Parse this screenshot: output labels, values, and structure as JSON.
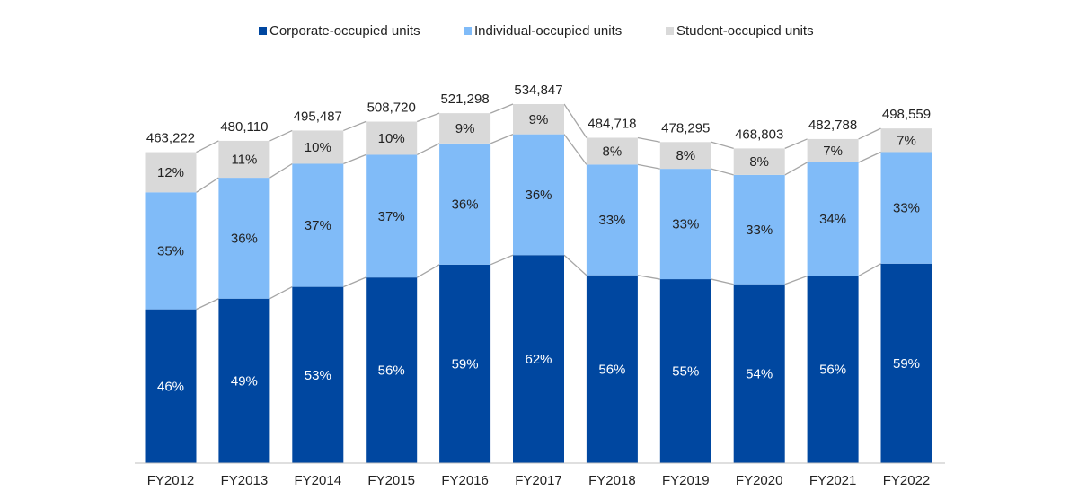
{
  "chart_data": {
    "type": "stacked_bar",
    "categories": [
      "FY2012",
      "FY2013",
      "FY2014",
      "FY2015",
      "FY2016",
      "FY2017",
      "FY2018",
      "FY2019",
      "FY2020",
      "FY2021",
      "FY2022"
    ],
    "series": [
      {
        "name": "Corporate-occupied units",
        "color": "#0047a0",
        "values": [
          46,
          49,
          53,
          56,
          59,
          62,
          56,
          55,
          54,
          56,
          59
        ],
        "value_labels": [
          "46%",
          "49%",
          "53%",
          "56%",
          "59%",
          "62%",
          "56%",
          "55%",
          "54%",
          "56%",
          "59%"
        ]
      },
      {
        "name": "Individual-occupied units",
        "color": "#80bbf8",
        "values": [
          35,
          36,
          37,
          37,
          36,
          36,
          33,
          33,
          33,
          34,
          33
        ],
        "value_labels": [
          "35%",
          "36%",
          "37%",
          "37%",
          "36%",
          "36%",
          "33%",
          "33%",
          "33%",
          "34%",
          "33%"
        ]
      },
      {
        "name": "Student-occupied units",
        "color": "#d9d9d9",
        "values": [
          12,
          11,
          10,
          10,
          9,
          9,
          8,
          8,
          8,
          7,
          7
        ],
        "value_labels": [
          "12%",
          "11%",
          "10%",
          "10%",
          "9%",
          "9%",
          "8%",
          "8%",
          "8%",
          "7%",
          "7%"
        ]
      }
    ],
    "totals": {
      "values": [
        463222,
        480110,
        495487,
        508720,
        521298,
        534847,
        484718,
        478295,
        468803,
        482788,
        498559
      ],
      "value_labels": [
        "463,222",
        "480,110",
        "495,487",
        "508,720",
        "521,298",
        "534,847",
        "484,718",
        "478,295",
        "468,803",
        "482,788",
        "498,559"
      ]
    },
    "legend": "top"
  }
}
